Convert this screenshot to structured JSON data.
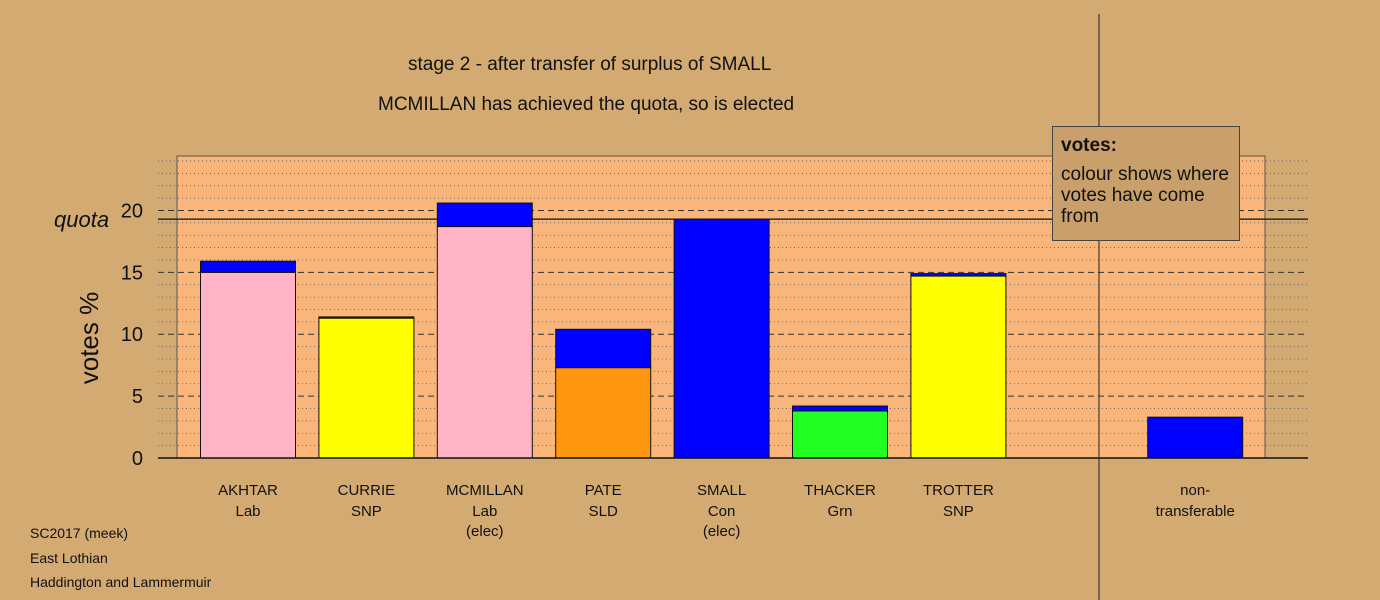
{
  "title_line1": "stage 2 - after transfer of surplus of SMALL",
  "title_line2": "MCMILLAN has achieved the quota, so is elected",
  "legend": {
    "title": "votes:",
    "body": "colour shows where votes have come from"
  },
  "footer": {
    "line1": "SC2017 (meek)",
    "line2": "East Lothian",
    "line3": "Haddington and Lammermuir"
  },
  "colors": {
    "background": "#d4aa73",
    "plot": "#fab67a",
    "Lab": "#ffb3c6",
    "SNP": "#ffff00",
    "SLD": "#ff9610",
    "Con": "#0000ff",
    "Grn": "#22ff22"
  },
  "chart_data": {
    "type": "bar",
    "stacked": true,
    "ylabel": "votes %",
    "quota_label": "quota",
    "quota": 19.3,
    "ylim": [
      0,
      24.4
    ],
    "yticks": [
      0,
      5,
      10,
      15,
      20
    ],
    "grid": "dashed at major ticks, dotted at minor",
    "categories": [
      {
        "name": "AKHTAR",
        "party": "Lab",
        "note": ""
      },
      {
        "name": "CURRIE",
        "party": "SNP",
        "note": ""
      },
      {
        "name": "MCMILLAN",
        "party": "Lab",
        "note": "(elec)"
      },
      {
        "name": "PATE",
        "party": "SLD",
        "note": ""
      },
      {
        "name": "SMALL",
        "party": "Con",
        "note": "(elec)"
      },
      {
        "name": "THACKER",
        "party": "Grn",
        "note": ""
      },
      {
        "name": "TROTTER",
        "party": "SNP",
        "note": ""
      },
      {
        "name": "",
        "party": "",
        "note": ""
      },
      {
        "name": "non-",
        "party": "transferable",
        "note": ""
      }
    ],
    "series": [
      {
        "party": "Lab",
        "values": [
          15.0,
          0,
          18.7,
          0,
          0,
          0,
          0,
          0,
          0
        ]
      },
      {
        "party": "SNP",
        "values": [
          0,
          11.3,
          0,
          0,
          0,
          0,
          14.7,
          0,
          0
        ]
      },
      {
        "party": "SLD",
        "values": [
          0,
          0,
          0,
          7.3,
          0,
          0,
          0,
          0,
          0
        ]
      },
      {
        "party": "Grn",
        "values": [
          0,
          0,
          0,
          0,
          0,
          3.8,
          0,
          0,
          0
        ]
      },
      {
        "party": "Con",
        "values": [
          0.9,
          0.1,
          1.9,
          3.1,
          19.3,
          0.4,
          0.2,
          0,
          3.3
        ]
      }
    ]
  }
}
